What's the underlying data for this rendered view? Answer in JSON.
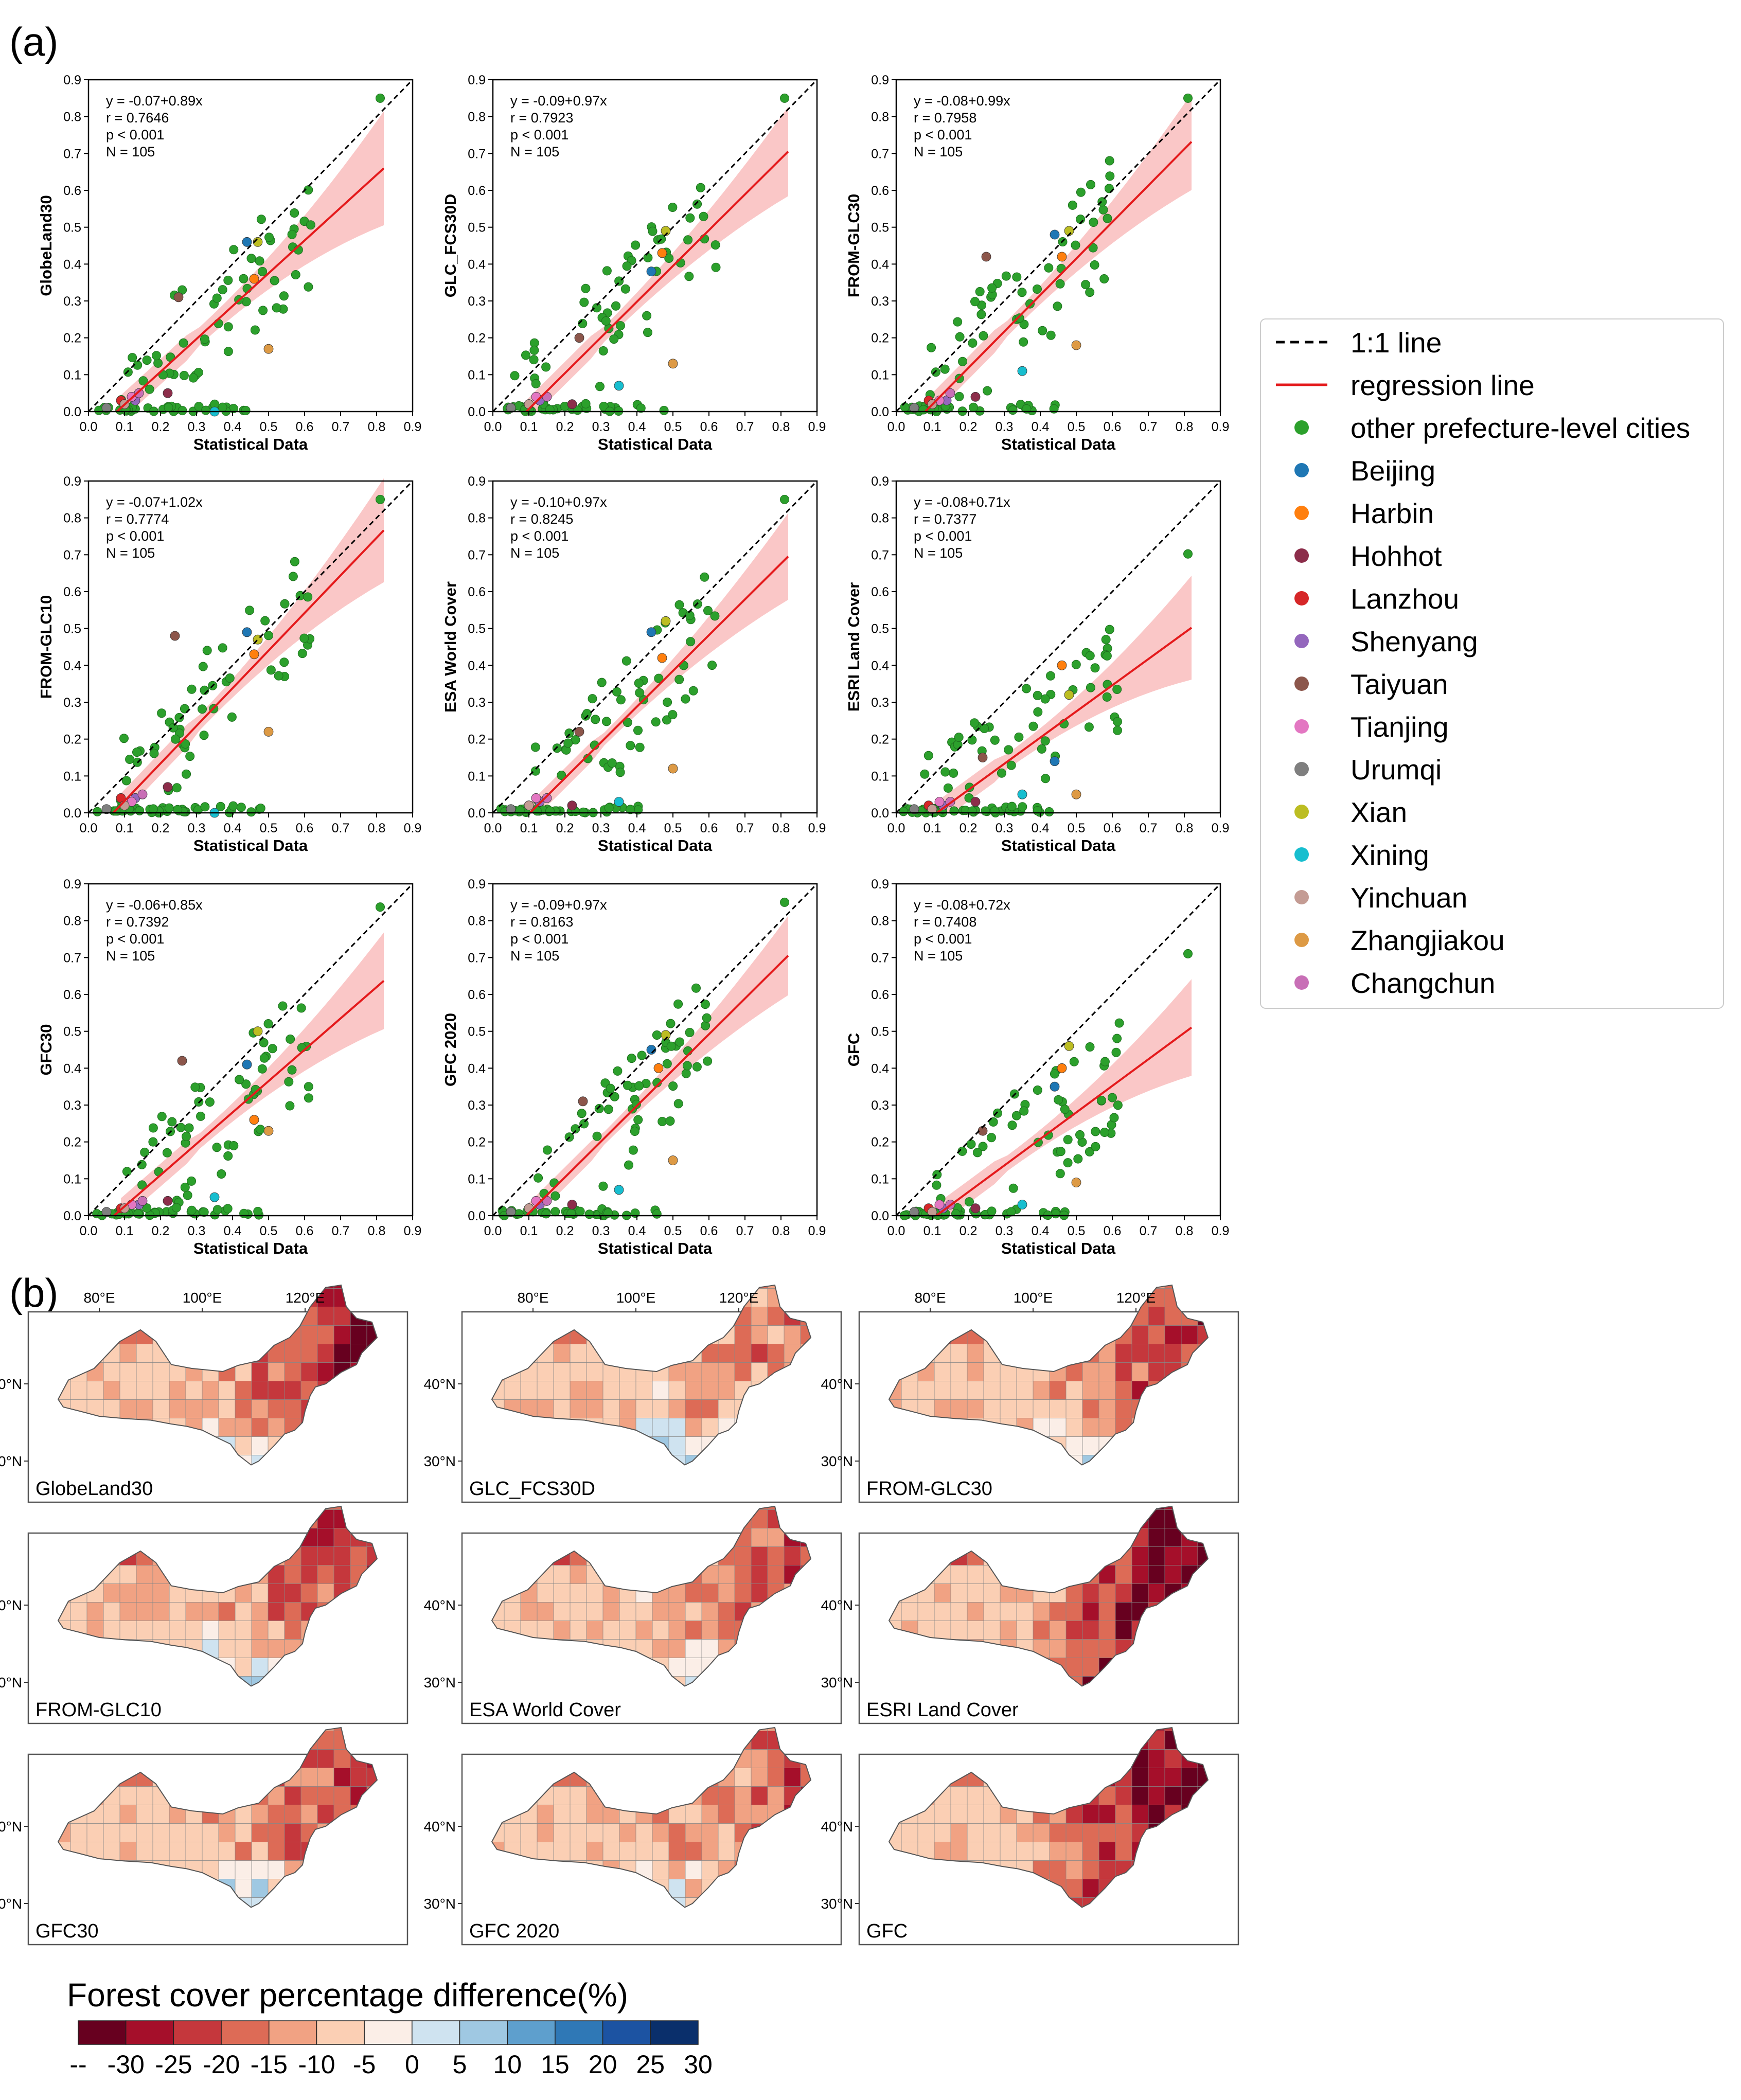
{
  "figure": {
    "panel_a_label": "(a)",
    "panel_b_label": "(b)"
  },
  "colors": {
    "other": "#2ca02c",
    "Beijing": "#1f77b4",
    "Harbin": "#ff7f0e",
    "Hohhot": "#8c2d4a",
    "Lanzhou": "#d62728",
    "Shenyang": "#9467bd",
    "Taiyuan": "#8c564b",
    "Tianjing": "#e377c2",
    "Urumqi": "#7f7f7f",
    "Xian": "#bcbd22",
    "Xining": "#17becf",
    "Yinchuan": "#c49c94",
    "Zhangjiakou": "#dd9a45",
    "Changchun": "#c86fb6",
    "regression": "#e41a1c",
    "band": "#f8b4b4"
  },
  "legend": {
    "items": [
      {
        "label": "1:1 line",
        "kind": "dash",
        "color": "#000000"
      },
      {
        "label": "regression line",
        "kind": "line",
        "color": "#e41a1c"
      },
      {
        "label": "other prefecture-level cities",
        "kind": "dot",
        "color": "#2ca02c"
      },
      {
        "label": "Beijing",
        "kind": "dot",
        "color": "#1f77b4"
      },
      {
        "label": "Harbin",
        "kind": "dot",
        "color": "#ff7f0e"
      },
      {
        "label": "Hohhot",
        "kind": "dot",
        "color": "#8c2d4a"
      },
      {
        "label": "Lanzhou",
        "kind": "dot",
        "color": "#d62728"
      },
      {
        "label": "Shenyang",
        "kind": "dot",
        "color": "#9467bd"
      },
      {
        "label": "Taiyuan",
        "kind": "dot",
        "color": "#8c564b"
      },
      {
        "label": "Tianjing",
        "kind": "dot",
        "color": "#e377c2"
      },
      {
        "label": "Urumqi",
        "kind": "dot",
        "color": "#7f7f7f"
      },
      {
        "label": "Xian",
        "kind": "dot",
        "color": "#bcbd22"
      },
      {
        "label": "Xining",
        "kind": "dot",
        "color": "#17becf"
      },
      {
        "label": "Yinchuan",
        "kind": "dot",
        "color": "#c49c94"
      },
      {
        "label": "Zhangjiakou",
        "kind": "dot",
        "color": "#dd9a45"
      },
      {
        "label": "Changchun",
        "kind": "dot",
        "color": "#c86fb6"
      }
    ]
  },
  "chart_data": [
    {
      "type": "scatter",
      "ylabel": "GlobeLand30",
      "xlabel": "Statistical Data",
      "xlim": [
        0,
        0.9
      ],
      "ylim": [
        0,
        0.9
      ],
      "ticks": [
        "0.0",
        "0.1",
        "0.2",
        "0.3",
        "0.4",
        "0.5",
        "0.6",
        "0.7",
        "0.8",
        "0.9"
      ],
      "stats": [
        "y = -0.07+0.89x",
        "r = 0.7646",
        "p < 0.001",
        "N = 105"
      ],
      "intercept": -0.07,
      "slope": 0.89,
      "band": [
        0.07,
        0.13
      ],
      "seed": 11,
      "cities": {
        "Beijing": [
          0.44,
          0.46
        ],
        "Harbin": [
          0.46,
          0.36
        ],
        "Xian": [
          0.47,
          0.46
        ],
        "Zhangjiakou": [
          0.5,
          0.17
        ],
        "Taiyuan": [
          0.25,
          0.31
        ],
        "Hohhot": [
          0.22,
          0.05
        ],
        "Lanzhou": [
          0.09,
          0.03
        ],
        "Shenyang": [
          0.13,
          0.03
        ],
        "Tianjing": [
          0.12,
          0.04
        ],
        "Changchun": [
          0.14,
          0.05
        ],
        "Yinchuan": [
          0.1,
          0.02
        ],
        "Xining": [
          0.35,
          0.0
        ],
        "Urumqi": [
          0.05,
          0.01
        ]
      }
    },
    {
      "type": "scatter",
      "ylabel": "GLC_FCS30D",
      "xlabel": "Statistical Data",
      "xlim": [
        0,
        0.9
      ],
      "ylim": [
        0,
        0.9
      ],
      "ticks": [
        "0.0",
        "0.1",
        "0.2",
        "0.3",
        "0.4",
        "0.5",
        "0.6",
        "0.7",
        "0.8",
        "0.9"
      ],
      "stats": [
        "y = -0.09+0.97x",
        "r = 0.7923",
        "p < 0.001",
        "N = 105"
      ],
      "intercept": -0.09,
      "slope": 0.97,
      "band": [
        0.06,
        0.1
      ],
      "seed": 23,
      "cities": {
        "Beijing": [
          0.44,
          0.38
        ],
        "Harbin": [
          0.47,
          0.43
        ],
        "Xian": [
          0.48,
          0.49
        ],
        "Zhangjiakou": [
          0.5,
          0.13
        ],
        "Taiyuan": [
          0.24,
          0.2
        ],
        "Hohhot": [
          0.22,
          0.02
        ],
        "Lanzhou": [
          0.1,
          0.02
        ],
        "Shenyang": [
          0.13,
          0.03
        ],
        "Tianjing": [
          0.12,
          0.04
        ],
        "Changchun": [
          0.15,
          0.04
        ],
        "Yinchuan": [
          0.1,
          0.02
        ],
        "Xining": [
          0.35,
          0.07
        ],
        "Urumqi": [
          0.05,
          0.01
        ]
      }
    },
    {
      "type": "scatter",
      "ylabel": "FROM-GLC30",
      "xlabel": "Statistical Data",
      "xlim": [
        0,
        0.9
      ],
      "ylim": [
        0,
        0.9
      ],
      "ticks": [
        "0.0",
        "0.1",
        "0.2",
        "0.3",
        "0.4",
        "0.5",
        "0.6",
        "0.7",
        "0.8",
        "0.9"
      ],
      "stats": [
        "y = -0.08+0.99x",
        "r = 0.7958",
        "p < 0.001",
        "N = 105"
      ],
      "intercept": -0.08,
      "slope": 0.99,
      "band": [
        0.06,
        0.11
      ],
      "seed": 37,
      "cities": {
        "Beijing": [
          0.44,
          0.48
        ],
        "Harbin": [
          0.46,
          0.42
        ],
        "Xian": [
          0.48,
          0.49
        ],
        "Zhangjiakou": [
          0.5,
          0.18
        ],
        "Taiyuan": [
          0.25,
          0.42
        ],
        "Hohhot": [
          0.22,
          0.04
        ],
        "Lanzhou": [
          0.09,
          0.03
        ],
        "Shenyang": [
          0.14,
          0.03
        ],
        "Tianjing": [
          0.12,
          0.03
        ],
        "Changchun": [
          0.15,
          0.05
        ],
        "Yinchuan": [
          0.1,
          0.02
        ],
        "Xining": [
          0.35,
          0.11
        ],
        "Urumqi": [
          0.05,
          0.01
        ]
      }
    },
    {
      "type": "scatter",
      "ylabel": "FROM-GLC10",
      "xlabel": "Statistical Data",
      "xlim": [
        0,
        0.9
      ],
      "ylim": [
        0,
        0.9
      ],
      "ticks": [
        "0.0",
        "0.1",
        "0.2",
        "0.3",
        "0.4",
        "0.5",
        "0.6",
        "0.7",
        "0.8",
        "0.9"
      ],
      "stats": [
        "y = -0.07+1.02x",
        "r = 0.7774",
        "p < 0.001",
        "N = 105"
      ],
      "intercept": -0.07,
      "slope": 1.02,
      "band": [
        0.06,
        0.12
      ],
      "seed": 41,
      "cities": {
        "Beijing": [
          0.44,
          0.49
        ],
        "Harbin": [
          0.46,
          0.43
        ],
        "Xian": [
          0.47,
          0.47
        ],
        "Zhangjiakou": [
          0.5,
          0.22
        ],
        "Taiyuan": [
          0.24,
          0.48
        ],
        "Hohhot": [
          0.22,
          0.07
        ],
        "Lanzhou": [
          0.09,
          0.04
        ],
        "Shenyang": [
          0.13,
          0.04
        ],
        "Tianjing": [
          0.12,
          0.03
        ],
        "Changchun": [
          0.15,
          0.05
        ],
        "Yinchuan": [
          0.1,
          0.02
        ],
        "Xining": [
          0.35,
          0.0
        ],
        "Urumqi": [
          0.05,
          0.01
        ]
      }
    },
    {
      "type": "scatter",
      "ylabel": "ESA World Cover",
      "xlabel": "Statistical Data",
      "xlim": [
        0,
        0.9
      ],
      "ylim": [
        0,
        0.9
      ],
      "ticks": [
        "0.0",
        "0.1",
        "0.2",
        "0.3",
        "0.4",
        "0.5",
        "0.6",
        "0.7",
        "0.8",
        "0.9"
      ],
      "stats": [
        "y = -0.10+0.97x",
        "r = 0.8245",
        "p < 0.001",
        "N = 105"
      ],
      "intercept": -0.1,
      "slope": 0.97,
      "band": [
        0.05,
        0.1
      ],
      "seed": 53,
      "cities": {
        "Beijing": [
          0.44,
          0.49
        ],
        "Harbin": [
          0.47,
          0.42
        ],
        "Xian": [
          0.48,
          0.52
        ],
        "Zhangjiakou": [
          0.5,
          0.12
        ],
        "Taiyuan": [
          0.24,
          0.22
        ],
        "Hohhot": [
          0.22,
          0.02
        ],
        "Lanzhou": [
          0.1,
          0.02
        ],
        "Shenyang": [
          0.13,
          0.03
        ],
        "Tianjing": [
          0.12,
          0.04
        ],
        "Changchun": [
          0.15,
          0.04
        ],
        "Yinchuan": [
          0.1,
          0.02
        ],
        "Xining": [
          0.35,
          0.03
        ],
        "Urumqi": [
          0.05,
          0.01
        ]
      }
    },
    {
      "type": "scatter",
      "ylabel": "ESRI Land Cover",
      "xlabel": "Statistical Data",
      "xlim": [
        0,
        0.9
      ],
      "ylim": [
        0,
        0.9
      ],
      "ticks": [
        "0.0",
        "0.1",
        "0.2",
        "0.3",
        "0.4",
        "0.5",
        "0.6",
        "0.7",
        "0.8",
        "0.9"
      ],
      "stats": [
        "y = -0.08+0.71x",
        "r = 0.7377",
        "p < 0.001",
        "N = 105"
      ],
      "intercept": -0.08,
      "slope": 0.71,
      "band": [
        0.06,
        0.12
      ],
      "seed": 67,
      "cities": {
        "Beijing": [
          0.44,
          0.14
        ],
        "Harbin": [
          0.46,
          0.4
        ],
        "Xian": [
          0.48,
          0.32
        ],
        "Zhangjiakou": [
          0.5,
          0.05
        ],
        "Taiyuan": [
          0.24,
          0.15
        ],
        "Hohhot": [
          0.22,
          0.03
        ],
        "Lanzhou": [
          0.09,
          0.02
        ],
        "Shenyang": [
          0.13,
          0.02
        ],
        "Tianjing": [
          0.12,
          0.03
        ],
        "Changchun": [
          0.15,
          0.03
        ],
        "Yinchuan": [
          0.1,
          0.01
        ],
        "Xining": [
          0.35,
          0.05
        ],
        "Urumqi": [
          0.05,
          0.01
        ]
      }
    },
    {
      "type": "scatter",
      "ylabel": "GFC30",
      "xlabel": "Statistical Data",
      "xlim": [
        0,
        0.9
      ],
      "ylim": [
        0,
        0.9
      ],
      "ticks": [
        "0.0",
        "0.1",
        "0.2",
        "0.3",
        "0.4",
        "0.5",
        "0.6",
        "0.7",
        "0.8",
        "0.9"
      ],
      "stats": [
        "y = -0.06+0.85x",
        "r = 0.7392",
        "p < 0.001",
        "N = 105"
      ],
      "intercept": -0.06,
      "slope": 0.85,
      "band": [
        0.06,
        0.11
      ],
      "seed": 71,
      "cities": {
        "Beijing": [
          0.44,
          0.41
        ],
        "Harbin": [
          0.46,
          0.26
        ],
        "Xian": [
          0.47,
          0.5
        ],
        "Zhangjiakou": [
          0.5,
          0.23
        ],
        "Taiyuan": [
          0.26,
          0.42
        ],
        "Hohhot": [
          0.22,
          0.04
        ],
        "Lanzhou": [
          0.09,
          0.02
        ],
        "Shenyang": [
          0.14,
          0.03
        ],
        "Tianjing": [
          0.12,
          0.03
        ],
        "Changchun": [
          0.15,
          0.04
        ],
        "Yinchuan": [
          0.1,
          0.02
        ],
        "Xining": [
          0.35,
          0.05
        ],
        "Urumqi": [
          0.05,
          0.01
        ]
      }
    },
    {
      "type": "scatter",
      "ylabel": "GFC 2020",
      "xlabel": "Statistical Data",
      "xlim": [
        0,
        0.9
      ],
      "ylim": [
        0,
        0.9
      ],
      "ticks": [
        "0.0",
        "0.1",
        "0.2",
        "0.3",
        "0.4",
        "0.5",
        "0.6",
        "0.7",
        "0.8",
        "0.9"
      ],
      "stats": [
        "y = -0.09+0.97x",
        "r = 0.8163",
        "p < 0.001",
        "N = 105"
      ],
      "intercept": -0.09,
      "slope": 0.97,
      "band": [
        0.05,
        0.09
      ],
      "seed": 83,
      "cities": {
        "Beijing": [
          0.44,
          0.45
        ],
        "Harbin": [
          0.46,
          0.4
        ],
        "Xian": [
          0.48,
          0.49
        ],
        "Zhangjiakou": [
          0.5,
          0.15
        ],
        "Taiyuan": [
          0.25,
          0.31
        ],
        "Hohhot": [
          0.22,
          0.03
        ],
        "Lanzhou": [
          0.1,
          0.02
        ],
        "Shenyang": [
          0.13,
          0.03
        ],
        "Tianjing": [
          0.12,
          0.04
        ],
        "Changchun": [
          0.15,
          0.04
        ],
        "Yinchuan": [
          0.1,
          0.02
        ],
        "Xining": [
          0.35,
          0.07
        ],
        "Urumqi": [
          0.05,
          0.01
        ]
      }
    },
    {
      "type": "scatter",
      "ylabel": "GFC",
      "xlabel": "Statistical Data",
      "xlim": [
        0,
        0.9
      ],
      "ylim": [
        0,
        0.9
      ],
      "ticks": [
        "0.0",
        "0.1",
        "0.2",
        "0.3",
        "0.4",
        "0.5",
        "0.6",
        "0.7",
        "0.8",
        "0.9"
      ],
      "stats": [
        "y = -0.08+0.72x",
        "r = 0.7408",
        "p < 0.001",
        "N = 105"
      ],
      "intercept": -0.08,
      "slope": 0.72,
      "band": [
        0.06,
        0.11
      ],
      "seed": 97,
      "cities": {
        "Beijing": [
          0.44,
          0.35
        ],
        "Harbin": [
          0.46,
          0.4
        ],
        "Xian": [
          0.48,
          0.46
        ],
        "Zhangjiakou": [
          0.5,
          0.09
        ],
        "Taiyuan": [
          0.24,
          0.23
        ],
        "Hohhot": [
          0.22,
          0.02
        ],
        "Lanzhou": [
          0.09,
          0.02
        ],
        "Shenyang": [
          0.13,
          0.02
        ],
        "Tianjing": [
          0.12,
          0.03
        ],
        "Changchun": [
          0.15,
          0.03
        ],
        "Yinchuan": [
          0.1,
          0.01
        ],
        "Xining": [
          0.35,
          0.03
        ],
        "Urumqi": [
          0.05,
          0.01
        ]
      }
    }
  ],
  "maps": {
    "lon_ticks": [
      "80°E",
      "100°E",
      "120°E"
    ],
    "lat_ticks": [
      "40°N",
      "30°N"
    ],
    "panels": [
      {
        "label": "GlobeLand30",
        "bias": -0.7,
        "east": -1.4,
        "south": 0.9
      },
      {
        "label": "GLC_FCS30D",
        "bias": -0.4,
        "east": -0.6,
        "south": 0.6
      },
      {
        "label": "FROM-GLC30",
        "bias": -0.6,
        "east": -1.0,
        "south": 0.8
      },
      {
        "label": "FROM-GLC10",
        "bias": -0.6,
        "east": -1.0,
        "south": 0.9
      },
      {
        "label": "ESA World Cover",
        "bias": -0.5,
        "east": -0.9,
        "south": 0.4
      },
      {
        "label": "ESRI Land Cover",
        "bias": -0.9,
        "east": -1.6,
        "south": -0.2
      },
      {
        "label": "GFC30",
        "bias": -0.6,
        "east": -1.0,
        "south": 1.1
      },
      {
        "label": "GFC 2020",
        "bias": -0.5,
        "east": -0.8,
        "south": 0.5
      },
      {
        "label": "GFC",
        "bias": -0.8,
        "east": -1.5,
        "south": -0.1
      }
    ]
  },
  "colorbar": {
    "title": "Forest cover percentage difference(%)",
    "colors": [
      "#67001f",
      "#a50f2a",
      "#c5373c",
      "#dd6b56",
      "#f1a283",
      "#fbcfb4",
      "#fbeee7",
      "#cfe3f0",
      "#9fc8e2",
      "#5e9fcd",
      "#2f78b6",
      "#1c53a2",
      "#0a2f6b"
    ],
    "ticks": [
      "--",
      "-30",
      "-25",
      "-20",
      "-15",
      "-10",
      "-5",
      "0",
      "5",
      "10",
      "15",
      "20",
      "25",
      "30"
    ]
  }
}
